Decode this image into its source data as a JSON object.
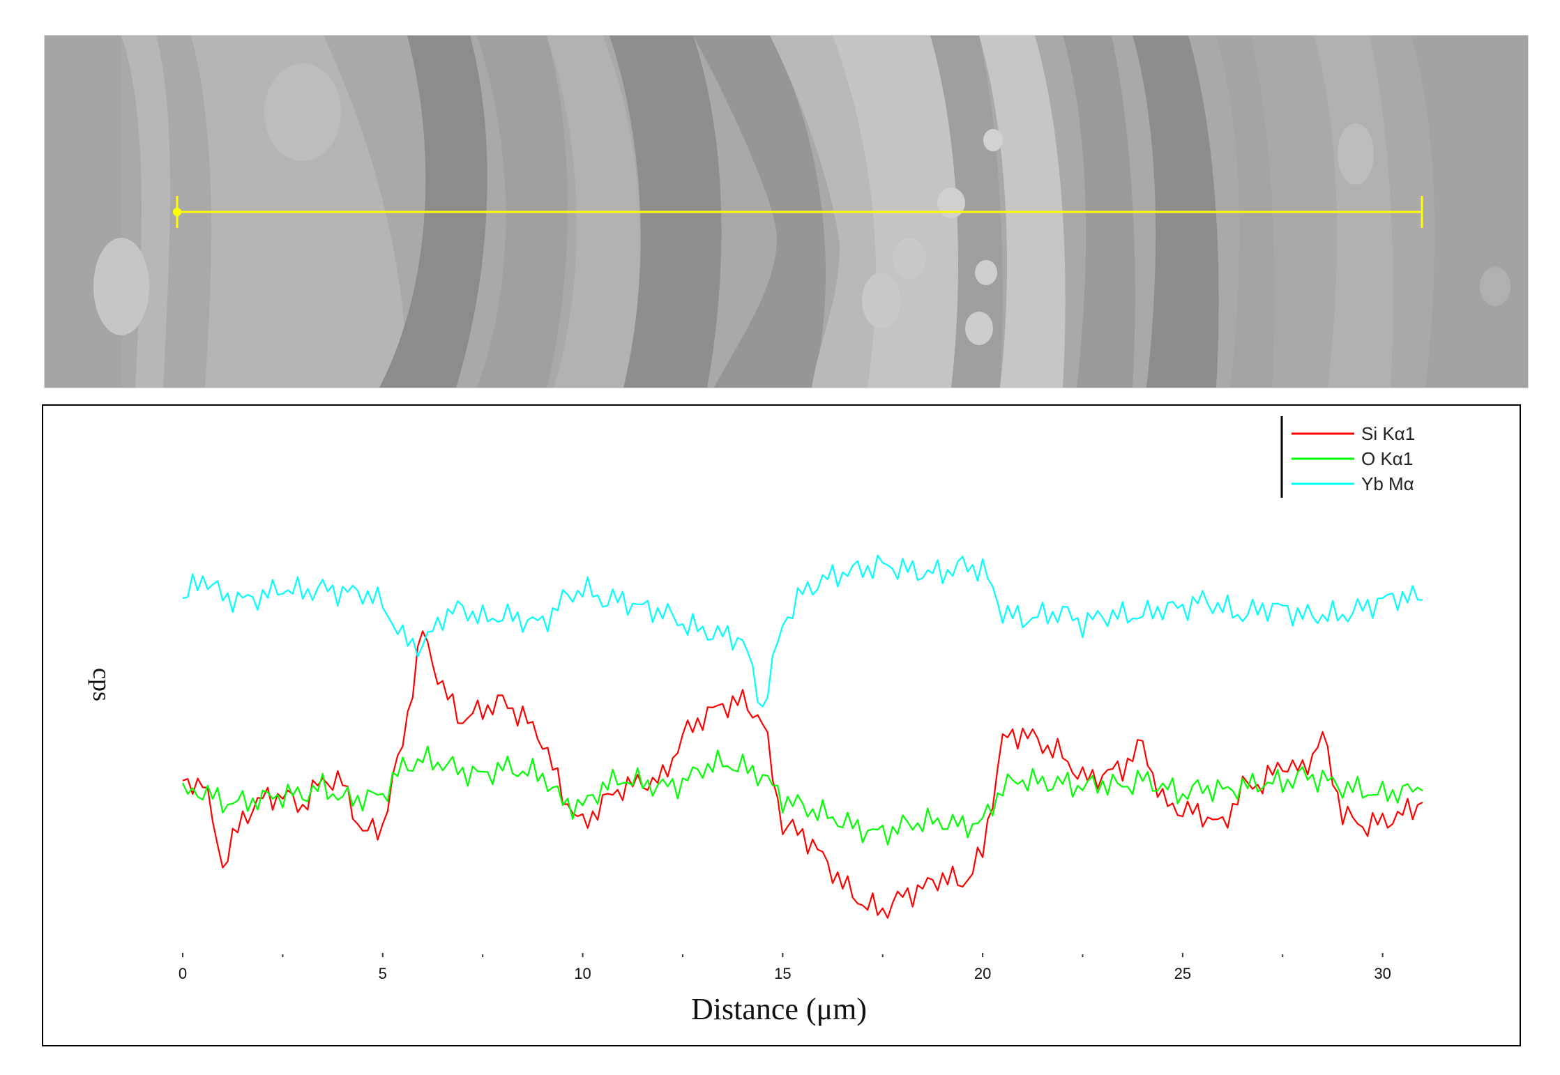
{
  "figure": {
    "colors": {
      "scan_line": "#ffff00",
      "background": "#ffffff",
      "micrograph_base": "#a9a9a9"
    }
  },
  "chart_data": {
    "type": "line",
    "title": "",
    "xlabel": "Distance (μm)",
    "ylabel": "cps",
    "xlim": [
      0,
      31
    ],
    "ylim": [
      0,
      120
    ],
    "x_ticks": [
      0,
      5,
      10,
      15,
      20,
      25,
      30
    ],
    "x_tick_labels": [
      "0",
      "5",
      "10",
      "15",
      "20",
      "25",
      "30"
    ],
    "grid": false,
    "legend_position": "top-right",
    "x": [
      0,
      0.5,
      1,
      1.5,
      2,
      2.5,
      3,
      3.5,
      4,
      4.5,
      5,
      5.5,
      6,
      6.5,
      7,
      7.5,
      8,
      8.5,
      9,
      9.5,
      10,
      10.5,
      11,
      11.5,
      12,
      12.5,
      13,
      13.5,
      14,
      14.5,
      15,
      15.5,
      16,
      16.5,
      17,
      17.5,
      18,
      18.5,
      19,
      19.5,
      20,
      20.5,
      21,
      21.5,
      22,
      22.5,
      23,
      23.5,
      24,
      24.5,
      25,
      25.5,
      26,
      26.5,
      27,
      27.5,
      28,
      28.5,
      29,
      29.5,
      30,
      30.5,
      31
    ],
    "series": [
      {
        "name": "Si Kα1",
        "color": "#ff0000",
        "values": [
          40,
          42,
          20,
          32,
          37,
          38,
          35,
          42,
          41,
          28,
          30,
          52,
          80,
          65,
          57,
          60,
          62,
          58,
          52,
          38,
          30,
          36,
          40,
          41,
          42,
          53,
          58,
          61,
          62,
          57,
          30,
          28,
          22,
          15,
          10,
          8,
          12,
          14,
          17,
          15,
          23,
          52,
          54,
          51,
          48,
          42,
          43,
          45,
          51,
          36,
          34,
          33,
          30,
          40,
          41,
          46,
          44,
          53,
          33,
          30,
          31,
          33,
          36
        ]
      },
      {
        "name": "O Kα1",
        "color": "#00ff00",
        "values": [
          38,
          39,
          36,
          36,
          37,
          38,
          38,
          40,
          37,
          37,
          38,
          45,
          47,
          46,
          44,
          43,
          45,
          44,
          43,
          36,
          35,
          40,
          42,
          41,
          40,
          41,
          45,
          46,
          45,
          43,
          37,
          35,
          33,
          31,
          29,
          28,
          30,
          31,
          31,
          30,
          31,
          40,
          42,
          41,
          41,
          40,
          41,
          40,
          42,
          40,
          38,
          40,
          39,
          40,
          41,
          41,
          43,
          42,
          40,
          39,
          38,
          39,
          39
        ]
      },
      {
        "name": "Yb Mα",
        "color": "#00ffff",
        "values": [
          88,
          94,
          89,
          88,
          89,
          91,
          90,
          91,
          90,
          90,
          87,
          78,
          76,
          84,
          86,
          83,
          84,
          83,
          82,
          88,
          91,
          88,
          88,
          86,
          85,
          82,
          80,
          79,
          78,
          60,
          82,
          90,
          93,
          95,
          96,
          97,
          96,
          95,
          95,
          97,
          96,
          85,
          83,
          84,
          85,
          82,
          84,
          84,
          84,
          86,
          86,
          88,
          86,
          84,
          86,
          86,
          84,
          84,
          84,
          86,
          88,
          89,
          88
        ]
      }
    ]
  }
}
